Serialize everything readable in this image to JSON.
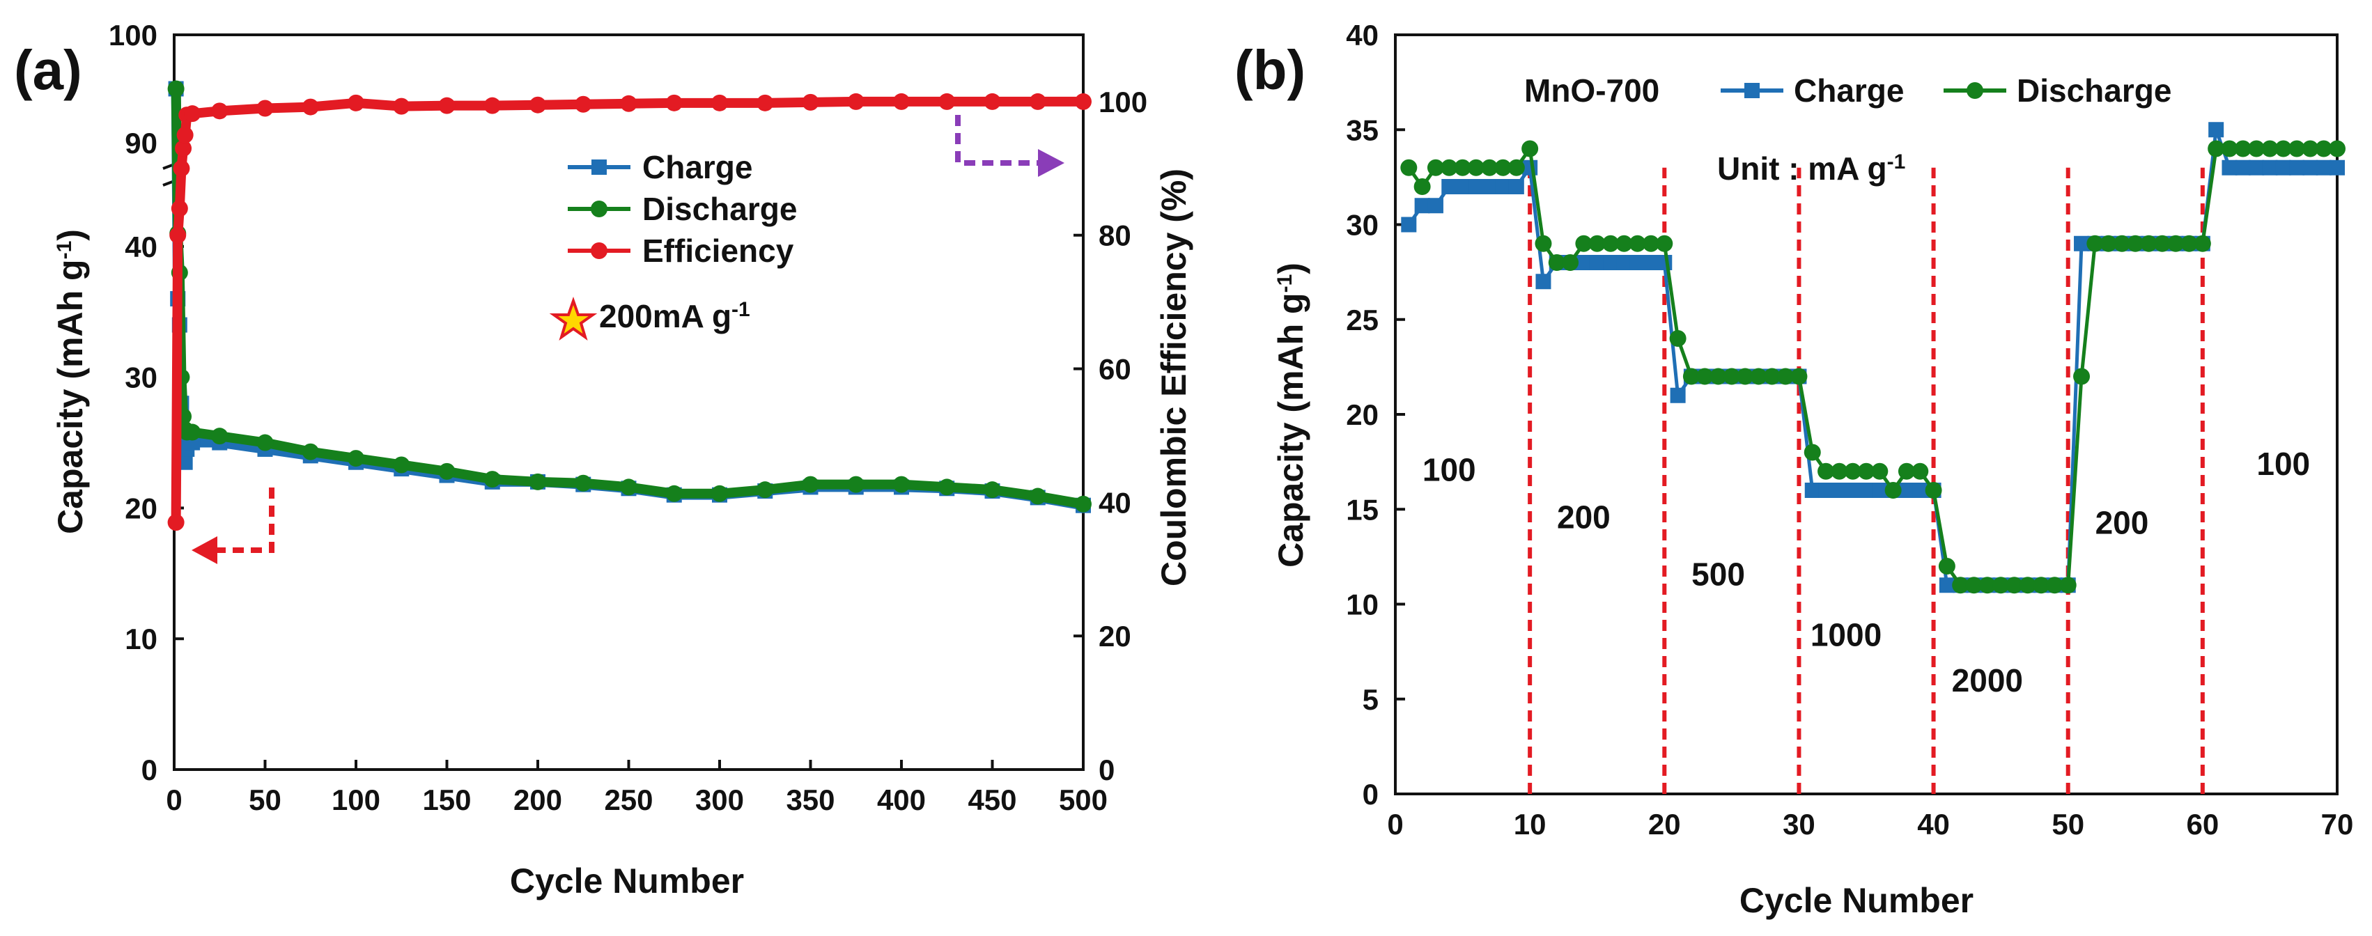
{
  "colors": {
    "charge": "#1f6fb5",
    "discharge": "#15801c",
    "efficiency": "#e31b23",
    "left_arrow": "#e31b23",
    "right_arrow": "#8a3db8",
    "star_fill": "#ffd700",
    "star_stroke": "#e31b23",
    "guide": "#e31b23"
  },
  "chart_data": [
    {
      "panel": "(a)",
      "type": "line",
      "xlabel": "Cycle Number",
      "ylabel_left": "Capacity (mAh g",
      "ylabel_left_sup": "-1",
      "ylabel_left_end": ")",
      "ylabel_right": "Coulombic Efficiency (%)",
      "x_range": [
        0,
        500
      ],
      "x_ticks": [
        0,
        50,
        100,
        150,
        200,
        250,
        300,
        350,
        400,
        450,
        500
      ],
      "y_left_lower_range": [
        0,
        45
      ],
      "y_left_lower_ticks": [
        0,
        10,
        20,
        30,
        40
      ],
      "y_left_upper_range": [
        88,
        100
      ],
      "y_left_upper_ticks": [
        90,
        100
      ],
      "y_right_range": [
        0,
        110
      ],
      "y_right_ticks": [
        0,
        20,
        40,
        60,
        80,
        100
      ],
      "axis_break": "left axis broken between 45 and 88",
      "series": [
        {
          "name": "Charge",
          "axis": "left",
          "x": [
            1,
            2,
            3,
            4,
            5,
            6,
            7,
            10,
            25,
            50,
            75,
            100,
            125,
            150,
            175,
            200,
            225,
            250,
            275,
            300,
            325,
            350,
            375,
            400,
            425,
            450,
            475,
            500
          ],
          "y": [
            95,
            36,
            34,
            28,
            24,
            23.5,
            24.5,
            25,
            25,
            24.5,
            24,
            23.5,
            23,
            22.5,
            22,
            22,
            21.8,
            21.5,
            21,
            21,
            21.3,
            21.6,
            21.6,
            21.6,
            21.5,
            21.3,
            20.8,
            20.2
          ]
        },
        {
          "name": "Discharge",
          "axis": "left",
          "x": [
            1,
            2,
            3,
            4,
            5,
            6,
            7,
            10,
            25,
            50,
            75,
            100,
            125,
            150,
            175,
            200,
            225,
            250,
            275,
            300,
            325,
            350,
            375,
            400,
            425,
            450,
            475,
            500
          ],
          "y": [
            95,
            41,
            38,
            30,
            27,
            26,
            25.8,
            25.8,
            25.5,
            25,
            24.3,
            23.8,
            23.3,
            22.8,
            22.2,
            22,
            21.9,
            21.6,
            21.1,
            21.1,
            21.4,
            21.8,
            21.8,
            21.8,
            21.6,
            21.4,
            20.9,
            20.3
          ]
        },
        {
          "name": "Efficiency",
          "axis": "right",
          "x": [
            1,
            2,
            3,
            4,
            5,
            6,
            7,
            10,
            25,
            50,
            75,
            100,
            125,
            150,
            175,
            200,
            225,
            250,
            275,
            300,
            325,
            350,
            375,
            400,
            425,
            450,
            475,
            500
          ],
          "y": [
            37,
            80,
            84,
            90,
            93,
            95,
            98,
            98.2,
            98.6,
            99,
            99.2,
            99.8,
            99.3,
            99.4,
            99.4,
            99.5,
            99.6,
            99.7,
            99.8,
            99.8,
            99.8,
            99.9,
            100,
            100,
            100,
            100,
            100,
            100
          ]
        }
      ],
      "legend": [
        "Charge",
        "Discharge",
        "Efficiency"
      ],
      "annotation": "200mA g",
      "annotation_sup": "-1"
    },
    {
      "panel": "(b)",
      "type": "line",
      "xlabel": "Cycle Number",
      "ylabel": "Capacity (mAh g",
      "ylabel_sup": "-1",
      "ylabel_end": ")",
      "x_range": [
        0,
        70
      ],
      "x_ticks": [
        0,
        10,
        20,
        30,
        40,
        50,
        60,
        70
      ],
      "y_range": [
        0,
        40
      ],
      "y_ticks": [
        0,
        5,
        10,
        15,
        20,
        25,
        30,
        35,
        40
      ],
      "legend_title": "MnO-700",
      "legend": [
        "Charge",
        "Discharge"
      ],
      "unit_label": "Unit : mA g",
      "unit_label_sup": "-1",
      "vertical_guides_x": [
        10,
        20,
        30,
        40,
        50,
        60
      ],
      "rate_labels": [
        {
          "text": "100",
          "x": 4,
          "y": 16.5
        },
        {
          "text": "200",
          "x": 14,
          "y": 14
        },
        {
          "text": "500",
          "x": 24,
          "y": 11
        },
        {
          "text": "1000",
          "x": 33.5,
          "y": 7.8
        },
        {
          "text": "2000",
          "x": 44,
          "y": 5.4
        },
        {
          "text": "200",
          "x": 54,
          "y": 13.7
        },
        {
          "text": "100",
          "x": 66,
          "y": 16.8
        }
      ],
      "series": [
        {
          "name": "Charge",
          "x": [
            1,
            2,
            3,
            4,
            5,
            6,
            7,
            8,
            9,
            10,
            11,
            12,
            13,
            14,
            15,
            16,
            17,
            18,
            19,
            20,
            21,
            22,
            23,
            24,
            25,
            26,
            27,
            28,
            29,
            30,
            31,
            32,
            33,
            34,
            35,
            36,
            37,
            38,
            39,
            40,
            41,
            42,
            43,
            44,
            45,
            46,
            47,
            48,
            49,
            50,
            51,
            52,
            53,
            54,
            55,
            56,
            57,
            58,
            59,
            60,
            61,
            62,
            63,
            64,
            65,
            66,
            67,
            68,
            69,
            70
          ],
          "y": [
            30,
            31,
            31,
            32,
            32,
            32,
            32,
            32,
            32,
            33,
            27,
            28,
            28,
            28,
            28,
            28,
            28,
            28,
            28,
            28,
            21,
            22,
            22,
            22,
            22,
            22,
            22,
            22,
            22,
            22,
            16,
            16,
            16,
            16,
            16,
            16,
            16,
            16,
            16,
            16,
            11,
            11,
            11,
            11,
            11,
            11,
            11,
            11,
            11,
            11,
            29,
            29,
            29,
            29,
            29,
            29,
            29,
            29,
            29,
            29,
            35,
            33,
            33,
            33,
            33,
            33,
            33,
            33,
            33,
            33
          ]
        },
        {
          "name": "Discharge",
          "x": [
            1,
            2,
            3,
            4,
            5,
            6,
            7,
            8,
            9,
            10,
            11,
            12,
            13,
            14,
            15,
            16,
            17,
            18,
            19,
            20,
            21,
            22,
            23,
            24,
            25,
            26,
            27,
            28,
            29,
            30,
            31,
            32,
            33,
            34,
            35,
            36,
            37,
            38,
            39,
            40,
            41,
            42,
            43,
            44,
            45,
            46,
            47,
            48,
            49,
            50,
            51,
            52,
            53,
            54,
            55,
            56,
            57,
            58,
            59,
            60,
            61,
            62,
            63,
            64,
            65,
            66,
            67,
            68,
            69,
            70
          ],
          "y": [
            33,
            32,
            33,
            33,
            33,
            33,
            33,
            33,
            33,
            34,
            29,
            28,
            28,
            29,
            29,
            29,
            29,
            29,
            29,
            29,
            24,
            22,
            22,
            22,
            22,
            22,
            22,
            22,
            22,
            22,
            18,
            17,
            17,
            17,
            17,
            17,
            16,
            17,
            17,
            16,
            12,
            11,
            11,
            11,
            11,
            11,
            11,
            11,
            11,
            11,
            22,
            29,
            29,
            29,
            29,
            29,
            29,
            29,
            29,
            29,
            34,
            34,
            34,
            34,
            34,
            34,
            34,
            34,
            34,
            34
          ]
        }
      ]
    }
  ]
}
